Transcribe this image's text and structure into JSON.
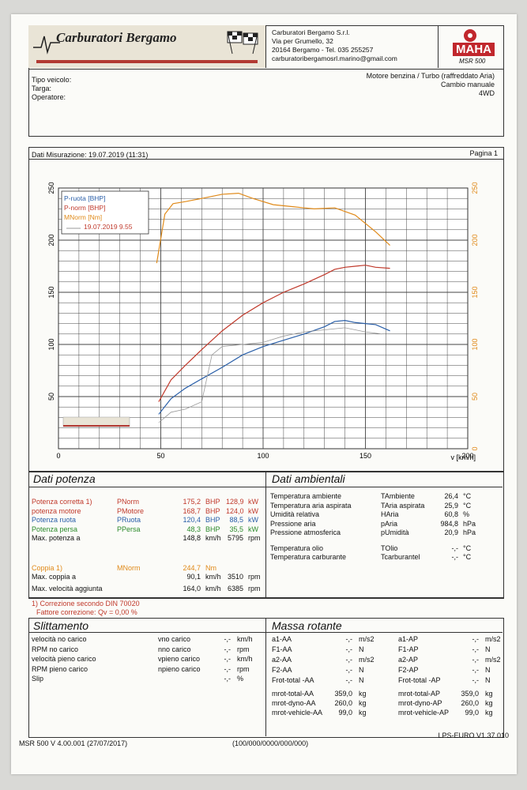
{
  "header": {
    "company": "Carburatori Bergamo",
    "address_lines": [
      "Carburatori Bergamo S.r.l.",
      "Via per Grumello, 32",
      "20164 Bergamo - Tel. 035 255257",
      "carburatoribergamosrl.marino@gmail.com"
    ],
    "brand": "MAHA",
    "model": "MSR 500"
  },
  "vehicle": {
    "tipo_label": "Tipo veicolo:",
    "targa_label": "Targa:",
    "operatore_label": "Operatore:",
    "engine": "Motore benzina / Turbo (raffreddato Aria)",
    "gearbox": "Cambio manuale",
    "drive": "4WD"
  },
  "measurement": {
    "date_label": "Dati Misurazione: 19.07.2019 (11:31)",
    "page": "Pagina 1"
  },
  "chart_data": {
    "type": "line",
    "xlabel": "v [km/h]",
    "xlim": [
      0,
      200
    ],
    "x_ticks": [
      "0",
      "50",
      "100",
      "150",
      "200"
    ],
    "ylim_left": [
      0,
      250
    ],
    "y_ticks_left": [
      "50",
      "100",
      "150",
      "200",
      "250"
    ],
    "ylim_right": [
      0,
      250
    ],
    "y_ticks_right": [
      "0",
      "50",
      "100",
      "150",
      "200",
      "250"
    ],
    "grid": true,
    "legend_position": "top-left",
    "legend": [
      "P-ruota [BHP]",
      "P-norm [BHP]",
      "MNorm [Nm]",
      "19.07.2019 9.55"
    ],
    "series": [
      {
        "name": "P-ruota [BHP]",
        "color": "#2a5fa8",
        "axis": "left",
        "x": [
          49,
          55,
          62,
          70,
          80,
          90,
          100,
          110,
          120,
          130,
          135,
          140,
          145,
          150,
          155,
          162
        ],
        "y": [
          33,
          48,
          58,
          67,
          78,
          90,
          98,
          104,
          110,
          117,
          122,
          123,
          121,
          120,
          119,
          113
        ]
      },
      {
        "name": "P-norm [BHP]",
        "color": "#c0392b",
        "axis": "left",
        "x": [
          49,
          55,
          62,
          70,
          80,
          90,
          100,
          110,
          120,
          130,
          135,
          140,
          145,
          150,
          155,
          162
        ],
        "y": [
          45,
          66,
          80,
          95,
          113,
          128,
          140,
          150,
          158,
          167,
          172,
          174,
          175,
          176,
          174,
          173
        ]
      },
      {
        "name": "MNorm [Nm]",
        "color": "#e08a1a",
        "axis": "right",
        "x": [
          48,
          52,
          56,
          62,
          70,
          80,
          88,
          95,
          105,
          115,
          125,
          135,
          145,
          155,
          162
        ],
        "y": [
          178,
          225,
          235,
          237,
          240,
          244,
          245,
          240,
          234,
          232,
          230,
          231,
          224,
          208,
          195
        ]
      },
      {
        "name": "19.07.2019 9.55",
        "color": "#999999",
        "axis": "left",
        "x": [
          49,
          55,
          62,
          70,
          75,
          80,
          90,
          100,
          110,
          120,
          130,
          140,
          150,
          158
        ],
        "y": [
          25,
          35,
          38,
          45,
          90,
          98,
          100,
          102,
          108,
          112,
          114,
          116,
          112,
          110
        ]
      }
    ]
  },
  "dati_potenza": {
    "title": "Dati potenza",
    "rows": [
      {
        "label": "Potenza corretta 1)",
        "sym": "PNorm",
        "v1": "175,2",
        "u1": "BHP",
        "v2": "128,9",
        "u2": "kW",
        "cls": "red"
      },
      {
        "label": "potenza motore",
        "sym": "PMotore",
        "v1": "168,7",
        "u1": "BHP",
        "v2": "124,0",
        "u2": "kW",
        "cls": "red"
      },
      {
        "label": "Potenza ruota",
        "sym": "PRuota",
        "v1": "120,4",
        "u1": "BHP",
        "v2": "88,5",
        "u2": "kW",
        "cls": "blue"
      },
      {
        "label": "Potenza persa",
        "sym": "PPersa",
        "v1": "48,3",
        "u1": "BHP",
        "v2": "35,5",
        "u2": "kW",
        "cls": "green"
      },
      {
        "label": "Max. potenza a",
        "sym": "",
        "v1": "148,8",
        "u1": "km/h",
        "v2": "5795",
        "u2": "rpm",
        "cls": ""
      }
    ],
    "coppia": {
      "label": "Coppia 1)",
      "sym": "MNorm",
      "v": "244,7",
      "u": "Nm"
    },
    "max_coppia": {
      "label": "Max. coppia a",
      "v1": "90,1",
      "u1": "km/h",
      "v2": "3510",
      "u2": "rpm"
    },
    "max_vel": {
      "label": "Max. velocità aggiunta",
      "v1": "164,0",
      "u1": "km/h",
      "v2": "6385",
      "u2": "rpm"
    },
    "note1": "1) Correzione secondo DIN 70020",
    "note2": "Fattore correzione: Qv = 0,00 %"
  },
  "dati_ambientali": {
    "title": "Dati ambientali",
    "rows": [
      {
        "label": "Temperatura ambiente",
        "sym": "TAmbiente",
        "v": "26,4",
        "u": "°C"
      },
      {
        "label": "Temperatura aria aspirata",
        "sym": "TAria aspirata",
        "v": "25,9",
        "u": "°C"
      },
      {
        "label": "Umidità relativa",
        "sym": "HAria",
        "v": "60,8",
        "u": "%"
      },
      {
        "label": "Pressione aria",
        "sym": "pAria",
        "v": "984,8",
        "u": "hPa"
      },
      {
        "label": "Pressione atmosferica",
        "sym": "pUmidità",
        "v": "20,9",
        "u": "hPa"
      },
      {
        "label": "Temperatura olio",
        "sym": "TOlio",
        "v": "-,-",
        "u": "°C"
      },
      {
        "label": "Temperatura carburante",
        "sym": "Tcarburantel",
        "v": "-,-",
        "u": "°C"
      }
    ]
  },
  "slittamento": {
    "title": "Slittamento",
    "rows": [
      {
        "label": "velocità no carico",
        "sym": "vno carico",
        "v": "-,-",
        "u": "km/h"
      },
      {
        "label": "RPM no carico",
        "sym": "nno carico",
        "v": "-,-",
        "u": "rpm"
      },
      {
        "label": "velocità pieno carico",
        "sym": "vpieno carico",
        "v": "-,-",
        "u": "km/h"
      },
      {
        "label": "RPM pieno carico",
        "sym": "npieno carico",
        "v": "-,-",
        "u": "rpm"
      },
      {
        "label": "Slip",
        "sym": "",
        "v": "-,-",
        "u": "%"
      }
    ]
  },
  "massa_rotante": {
    "title": "Massa rotante",
    "left": [
      {
        "sym": "a1-AA",
        "v": "-,-",
        "u": "m/s2"
      },
      {
        "sym": "F1-AA",
        "v": "-,-",
        "u": "N"
      },
      {
        "sym": "a2-AA",
        "v": "-,-",
        "u": "m/s2"
      },
      {
        "sym": "F2-AA",
        "v": "-,-",
        "u": "N"
      },
      {
        "sym": "Frot-total -AA",
        "v": "-,-",
        "u": "N"
      },
      {
        "sym": "mrot-total-AA",
        "v": "359,0",
        "u": "kg"
      },
      {
        "sym": "mrot-dyno-AA",
        "v": "260,0",
        "u": "kg"
      },
      {
        "sym": "mrot-vehicle-AA",
        "v": "99,0",
        "u": "kg"
      }
    ],
    "right": [
      {
        "sym": "a1-AP",
        "v": "-,-",
        "u": "m/s2"
      },
      {
        "sym": "F1-AP",
        "v": "-,-",
        "u": "N"
      },
      {
        "sym": "a2-AP",
        "v": "-,-",
        "u": "m/s2"
      },
      {
        "sym": "F2-AP",
        "v": "-,-",
        "u": "N"
      },
      {
        "sym": "Frot-total -AP",
        "v": "-,-",
        "u": "N"
      },
      {
        "sym": "mrot-total-AP",
        "v": "359,0",
        "u": "kg"
      },
      {
        "sym": "mrot-dyno-AP",
        "v": "260,0",
        "u": "kg"
      },
      {
        "sym": "mrot-vehicle-AP",
        "v": "99,0",
        "u": "kg"
      }
    ]
  },
  "footer": {
    "left": "MSR 500 V 4.00.001 (27/07/2017)",
    "mid": "(100/000/0000/000/000)",
    "right": "LPS-EURO V1.37.010"
  }
}
